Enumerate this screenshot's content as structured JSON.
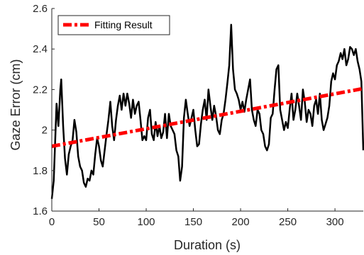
{
  "chart_data": {
    "type": "line",
    "title": "",
    "xlabel": "Duration (s)",
    "ylabel": "Gaze Error (cm)",
    "xlim": [
      0,
      330
    ],
    "ylim": [
      1.6,
      2.6
    ],
    "xticks": [
      0,
      50,
      100,
      150,
      200,
      250,
      300
    ],
    "xtick_labels": [
      "0",
      "50",
      "100",
      "150",
      "200",
      "250",
      "300"
    ],
    "yticks": [
      1.6,
      1.8,
      2.0,
      2.2,
      2.4,
      2.6
    ],
    "ytick_labels": [
      "1.6",
      "1.8",
      "2",
      "2.2",
      "2.4",
      "2.6"
    ],
    "grid": false,
    "legend_position": "top-left",
    "series": [
      {
        "name": "",
        "color": "#000000",
        "style": "solid",
        "x": [
          0,
          2,
          5,
          7,
          9,
          10,
          12,
          14,
          16,
          18,
          20,
          22,
          24,
          26,
          28,
          30,
          32,
          34,
          36,
          38,
          40,
          42,
          44,
          46,
          48,
          50,
          52,
          54,
          56,
          58,
          60,
          62,
          64,
          66,
          68,
          70,
          72,
          74,
          76,
          78,
          80,
          82,
          84,
          86,
          88,
          90,
          92,
          94,
          96,
          98,
          100,
          102,
          104,
          106,
          108,
          110,
          112,
          114,
          116,
          118,
          120,
          122,
          124,
          126,
          128,
          130,
          132,
          134,
          136,
          138,
          140,
          142,
          144,
          146,
          148,
          150,
          152,
          154,
          156,
          158,
          160,
          162,
          164,
          166,
          168,
          170,
          172,
          174,
          176,
          178,
          180,
          182,
          184,
          186,
          188,
          190,
          192,
          194,
          196,
          198,
          200,
          202,
          204,
          206,
          208,
          210,
          212,
          214,
          216,
          218,
          220,
          222,
          224,
          226,
          228,
          230,
          232,
          234,
          236,
          238,
          240,
          242,
          244,
          246,
          248,
          250,
          252,
          254,
          256,
          258,
          260,
          262,
          264,
          266,
          268,
          270,
          272,
          274,
          276,
          278,
          280,
          282,
          284,
          286,
          288,
          290,
          292,
          294,
          296,
          298,
          300,
          302,
          304,
          306,
          308,
          310,
          312,
          314,
          316,
          318,
          320,
          322,
          324,
          326,
          328,
          330
        ],
        "y": [
          1.66,
          1.75,
          2.13,
          2.02,
          2.2,
          2.25,
          2.02,
          1.86,
          1.78,
          1.88,
          1.92,
          1.95,
          2.05,
          1.99,
          1.87,
          1.82,
          1.8,
          1.74,
          1.72,
          1.76,
          1.75,
          1.8,
          1.78,
          1.88,
          1.96,
          1.92,
          1.85,
          1.82,
          1.9,
          1.98,
          2.05,
          2.14,
          2.02,
          1.95,
          2.05,
          2.12,
          2.17,
          2.1,
          2.18,
          2.12,
          2.18,
          2.13,
          2.06,
          2.15,
          2.08,
          2.12,
          2.14,
          2.05,
          1.95,
          1.97,
          1.95,
          2.06,
          2.1,
          1.98,
          1.95,
          2.04,
          1.97,
          2.02,
          1.96,
          1.99,
          2.08,
          1.96,
          2.08,
          2.02,
          2.0,
          1.98,
          1.9,
          1.87,
          1.75,
          1.82,
          2.06,
          2.15,
          2.08,
          2.02,
          2.06,
          2.1,
          2.0,
          1.92,
          1.93,
          2.03,
          2.1,
          2.15,
          2.05,
          2.2,
          2.12,
          2.05,
          2.12,
          2.07,
          2.0,
          1.98,
          2.05,
          2.08,
          2.15,
          2.23,
          2.32,
          2.52,
          2.3,
          2.2,
          2.18,
          2.15,
          2.1,
          2.14,
          2.09,
          2.15,
          2.2,
          2.25,
          2.1,
          2.05,
          2.02,
          2.1,
          2.08,
          2.0,
          1.98,
          1.92,
          1.9,
          1.93,
          2.06,
          2.08,
          2.2,
          2.3,
          2.32,
          2.1,
          2.05,
          2.0,
          2.04,
          2.01,
          2.1,
          2.18,
          2.05,
          2.1,
          2.18,
          2.12,
          2.05,
          2.2,
          2.14,
          2.04,
          2.1,
          2.08,
          2.02,
          2.12,
          2.15,
          2.08,
          2.18,
          2.05,
          2.0,
          2.03,
          2.06,
          2.12,
          2.24,
          2.28,
          2.25,
          2.32,
          2.34,
          2.38,
          2.35,
          2.4,
          2.32,
          2.35,
          2.41,
          2.4,
          2.37,
          2.4,
          2.34,
          2.3,
          2.24,
          1.9
        ]
      },
      {
        "name": "Fitting Result",
        "color": "#ff0000",
        "style": "dashdot",
        "x": [
          0,
          330
        ],
        "y": [
          1.92,
          2.205
        ]
      }
    ]
  }
}
